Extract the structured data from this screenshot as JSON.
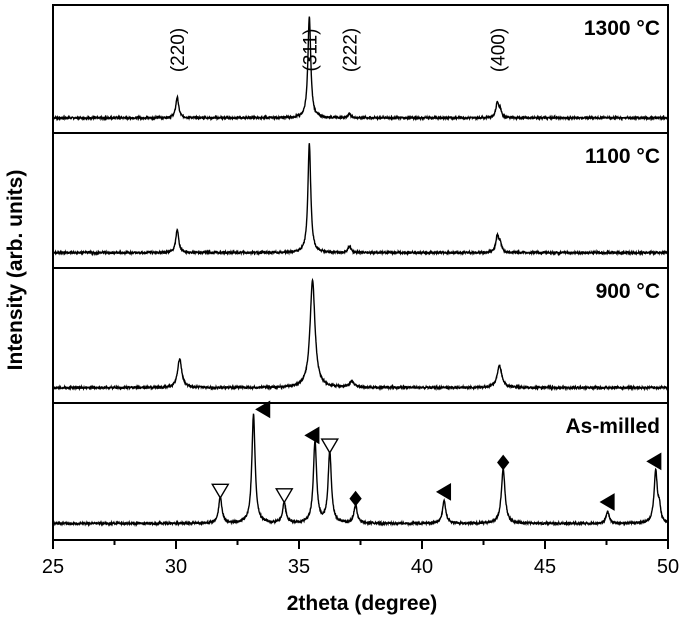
{
  "chart_data": {
    "type": "line",
    "xlabel": "2theta (degree)",
    "ylabel": "Intensity (arb. units)",
    "xlim": [
      25,
      50
    ],
    "x_ticks": [
      25,
      30,
      35,
      40,
      45,
      50
    ],
    "grid": false,
    "panels": [
      {
        "name": "1300 °C",
        "baseline": 0.03,
        "peaks": [
          {
            "x": 30.05,
            "height": 0.2,
            "width": 0.07
          },
          {
            "x": 35.42,
            "height": 0.97,
            "width": 0.07
          },
          {
            "x": 37.05,
            "height": 0.04,
            "width": 0.07
          },
          {
            "x": 43.06,
            "height": 0.14,
            "width": 0.07
          },
          {
            "x": 43.18,
            "height": 0.07,
            "width": 0.06
          }
        ],
        "hkl_labels": [
          {
            "text": "(220)",
            "x": 30.05
          },
          {
            "text": "(311)",
            "x": 35.42
          },
          {
            "text": "(222)",
            "x": 37.05
          },
          {
            "text": "(400)",
            "x": 43.06
          }
        ]
      },
      {
        "name": "1100 °C",
        "baseline": 0.03,
        "peaks": [
          {
            "x": 30.05,
            "height": 0.21,
            "width": 0.07
          },
          {
            "x": 35.42,
            "height": 0.98,
            "width": 0.07
          },
          {
            "x": 37.05,
            "height": 0.06,
            "width": 0.07
          },
          {
            "x": 43.06,
            "height": 0.15,
            "width": 0.07
          },
          {
            "x": 43.18,
            "height": 0.08,
            "width": 0.06
          }
        ]
      },
      {
        "name": "900 °C",
        "baseline": 0.03,
        "peaks": [
          {
            "x": 30.15,
            "height": 0.26,
            "width": 0.1
          },
          {
            "x": 35.55,
            "height": 0.97,
            "width": 0.12
          },
          {
            "x": 37.15,
            "height": 0.06,
            "width": 0.1
          },
          {
            "x": 43.15,
            "height": 0.2,
            "width": 0.11
          }
        ]
      },
      {
        "name": "As-milled",
        "baseline": 0.04,
        "peaks": [
          {
            "x": 31.8,
            "height": 0.23,
            "width": 0.08
          },
          {
            "x": 33.15,
            "height": 0.96,
            "width": 0.08
          },
          {
            "x": 34.4,
            "height": 0.18,
            "width": 0.08
          },
          {
            "x": 35.65,
            "height": 0.72,
            "width": 0.08
          },
          {
            "x": 36.25,
            "height": 0.63,
            "width": 0.08
          },
          {
            "x": 37.3,
            "height": 0.16,
            "width": 0.08
          },
          {
            "x": 40.9,
            "height": 0.2,
            "width": 0.08
          },
          {
            "x": 43.3,
            "height": 0.48,
            "width": 0.09
          },
          {
            "x": 47.55,
            "height": 0.1,
            "width": 0.08
          },
          {
            "x": 49.5,
            "height": 0.46,
            "width": 0.08
          },
          {
            "x": 49.65,
            "height": 0.12,
            "width": 0.06
          }
        ],
        "markers": [
          {
            "symbol": "open-triangle-down",
            "x": 31.8,
            "y": 0.33
          },
          {
            "symbol": "filled-triangle-left",
            "x": 33.55,
            "y": 1.05
          },
          {
            "symbol": "open-triangle-down",
            "x": 34.4,
            "y": 0.29
          },
          {
            "symbol": "filled-triangle-left",
            "x": 35.55,
            "y": 0.82
          },
          {
            "symbol": "open-triangle-down",
            "x": 36.25,
            "y": 0.73
          },
          {
            "symbol": "filled-diamond",
            "x": 37.3,
            "y": 0.26
          },
          {
            "symbol": "filled-triangle-left",
            "x": 40.9,
            "y": 0.32
          },
          {
            "symbol": "filled-diamond",
            "x": 43.3,
            "y": 0.58
          },
          {
            "symbol": "filled-triangle-left",
            "x": 47.55,
            "y": 0.23
          },
          {
            "symbol": "filled-triangle-left",
            "x": 49.45,
            "y": 0.59
          }
        ]
      }
    ]
  }
}
